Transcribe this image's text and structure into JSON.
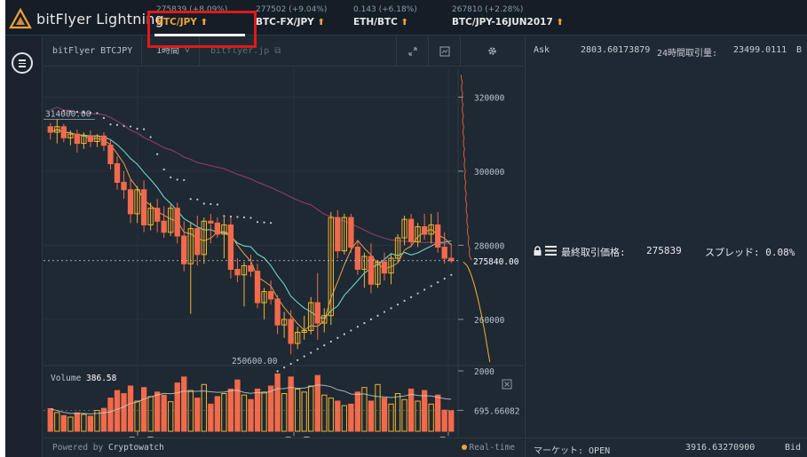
{
  "app": {
    "name": "bitFlyer Lightning"
  },
  "tickers": [
    {
      "change": "275839 (+8.09%)",
      "symbol": "BTC/JPY",
      "active": true
    },
    {
      "change": "277502 (+9.04%)",
      "symbol": "BTC-FX/JPY",
      "active": false
    },
    {
      "change": "0.143 (+6.18%)",
      "symbol": "ETH/BTC",
      "active": false
    },
    {
      "change": "267810 (+2.28%)",
      "symbol": "BTC/JPY-16JUN2017",
      "active": false
    }
  ],
  "chart_toolbar": {
    "market": "bitFlyer BTCJPY",
    "interval": "1時間",
    "interval_caret": "˅",
    "source": "bitflyer.jp"
  },
  "icons": {
    "menu": "menu-icon",
    "expand": "expand-icon",
    "screenshot": "screenshot-icon",
    "settings": "gear-icon",
    "external_link": "external-link-icon",
    "lock": "lock-icon",
    "list": "list-icon",
    "close": "close-icon"
  },
  "chart_data": {
    "type": "candlestick",
    "price_axis": {
      "ticks": [
        "320000",
        "300000",
        "280000",
        "260000"
      ],
      "current_label": "275840.00",
      "high_label": "314000.00",
      "low_label": "250600.00",
      "range": [
        248000,
        328000
      ]
    },
    "volume_panel": {
      "label": "Volume",
      "value": "386.58",
      "ticks": [
        "2000",
        "695.66082"
      ],
      "max": 2000
    },
    "x_ticks": [
      "6月15日",
      "6月16日",
      "6月1"
    ],
    "candles": [
      [
        312000,
        313000,
        308500,
        310500
      ],
      [
        310500,
        314000,
        307500,
        312000
      ],
      [
        312000,
        312800,
        307800,
        309000
      ],
      [
        309000,
        311000,
        307000,
        310000
      ],
      [
        310000,
        311200,
        305000,
        307500
      ],
      [
        307500,
        310500,
        306000,
        309500
      ],
      [
        309500,
        311000,
        306500,
        308000
      ],
      [
        308000,
        310000,
        306500,
        309500
      ],
      [
        309500,
        310500,
        305500,
        307000
      ],
      [
        307000,
        308500,
        300500,
        302000
      ],
      [
        302000,
        304000,
        295000,
        297000
      ],
      [
        297000,
        300000,
        292500,
        295000
      ],
      [
        295000,
        298000,
        286000,
        288500
      ],
      [
        288500,
        296000,
        286000,
        295000
      ],
      [
        295000,
        297500,
        283500,
        285500
      ],
      [
        285500,
        291500,
        284000,
        290000
      ],
      [
        290000,
        292500,
        283500,
        286500
      ],
      [
        286500,
        290500,
        282000,
        283500
      ],
      [
        283500,
        291000,
        282500,
        290000
      ],
      [
        290000,
        291500,
        280500,
        282500
      ],
      [
        282500,
        286500,
        273000,
        275000
      ],
      [
        275000,
        286000,
        261500,
        284500
      ],
      [
        284500,
        288000,
        274500,
        277500
      ],
      [
        277500,
        287500,
        275000,
        286500
      ],
      [
        286500,
        288500,
        280500,
        286000
      ],
      [
        286000,
        287500,
        282000,
        283000
      ],
      [
        283000,
        287500,
        276500,
        285500
      ],
      [
        285500,
        287500,
        271000,
        273500
      ],
      [
        273500,
        276500,
        270000,
        272000
      ],
      [
        272000,
        275500,
        263500,
        274500
      ],
      [
        274500,
        277500,
        271500,
        273000
      ],
      [
        273000,
        275000,
        263000,
        264500
      ],
      [
        264500,
        268500,
        260000,
        267500
      ],
      [
        267500,
        270500,
        264000,
        265500
      ],
      [
        265500,
        266500,
        256000,
        258500
      ],
      [
        258500,
        262000,
        255000,
        260000
      ],
      [
        260000,
        262500,
        250600,
        253500
      ],
      [
        253500,
        258000,
        252000,
        256500
      ],
      [
        256500,
        261000,
        254500,
        257000
      ],
      [
        257000,
        266000,
        256000,
        264500
      ],
      [
        264500,
        272500,
        254500,
        259000
      ],
      [
        259000,
        263000,
        256500,
        261000
      ],
      [
        261000,
        289000,
        258500,
        287500
      ],
      [
        287500,
        289500,
        276500,
        278500
      ],
      [
        278500,
        288500,
        277500,
        287500
      ],
      [
        287500,
        288500,
        278000,
        279500
      ],
      [
        279500,
        281500,
        272000,
        273500
      ],
      [
        273500,
        278000,
        268500,
        277000
      ],
      [
        277000,
        280500,
        267000,
        269500
      ],
      [
        269500,
        276000,
        268500,
        275500
      ],
      [
        275500,
        278000,
        270500,
        272500
      ],
      [
        272500,
        277500,
        269500,
        276500
      ],
      [
        276500,
        283000,
        275500,
        282000
      ],
      [
        282000,
        288000,
        280000,
        287000
      ],
      [
        287000,
        288500,
        279500,
        281000
      ],
      [
        281000,
        286000,
        279500,
        285000
      ],
      [
        285000,
        288500,
        281500,
        283000
      ],
      [
        283000,
        288500,
        280500,
        285500
      ],
      [
        285500,
        289000,
        278000,
        279500
      ],
      [
        279500,
        283500,
        275000,
        276500
      ],
      [
        276500,
        280500,
        275200,
        275840
      ]
    ],
    "volumes": [
      750,
      620,
      520,
      470,
      610,
      560,
      500,
      690,
      760,
      1100,
      1350,
      1250,
      1500,
      1000,
      1450,
      1150,
      1300,
      1200,
      980,
      1600,
      1800,
      1350,
      1100,
      1550,
      900,
      1150,
      1250,
      1400,
      1700,
      1200,
      1050,
      1400,
      1300,
      1500,
      1900,
      1250,
      1800,
      1400,
      1300,
      1500,
      1850,
      1200,
      1100,
      1000,
      850,
      900,
      1300,
      1450,
      1000,
      1550,
      1100,
      900,
      1250,
      1050,
      1400,
      1000,
      1350,
      900,
      1200,
      700,
      680
    ],
    "series_colors": {
      "up": "#f0b52c",
      "down": "#f26a4b",
      "ma_fast": "#e5a052",
      "ma_mid": "#6fd3cf",
      "ma_slow": "#8e3d6a",
      "sar": "#c7ccd1",
      "depth_ask": "#e05a3a",
      "depth_bid": "#f0b52c"
    }
  },
  "chart_footer": {
    "powered_prefix": "Powered by",
    "powered_brand": "Cryptowatch",
    "realtime": "Real-time"
  },
  "order_panel": {
    "ask_label": "Ask",
    "ask_price": "2803.60173879",
    "volume_label": "24時間取引量:",
    "volume_value": "23499.0111",
    "volume_unit": "B",
    "last_price_label": "最終取引価格:",
    "last_price_value": "275839",
    "spread_label": "スプレッド: 0.08%",
    "market_status": "マーケット: OPEN",
    "bid_price": "3916.63270900",
    "bid_label": "Bid"
  },
  "colors": {
    "accent": "#f2a33a",
    "annotation_box": "#e0191b",
    "background": "#1d2731"
  }
}
